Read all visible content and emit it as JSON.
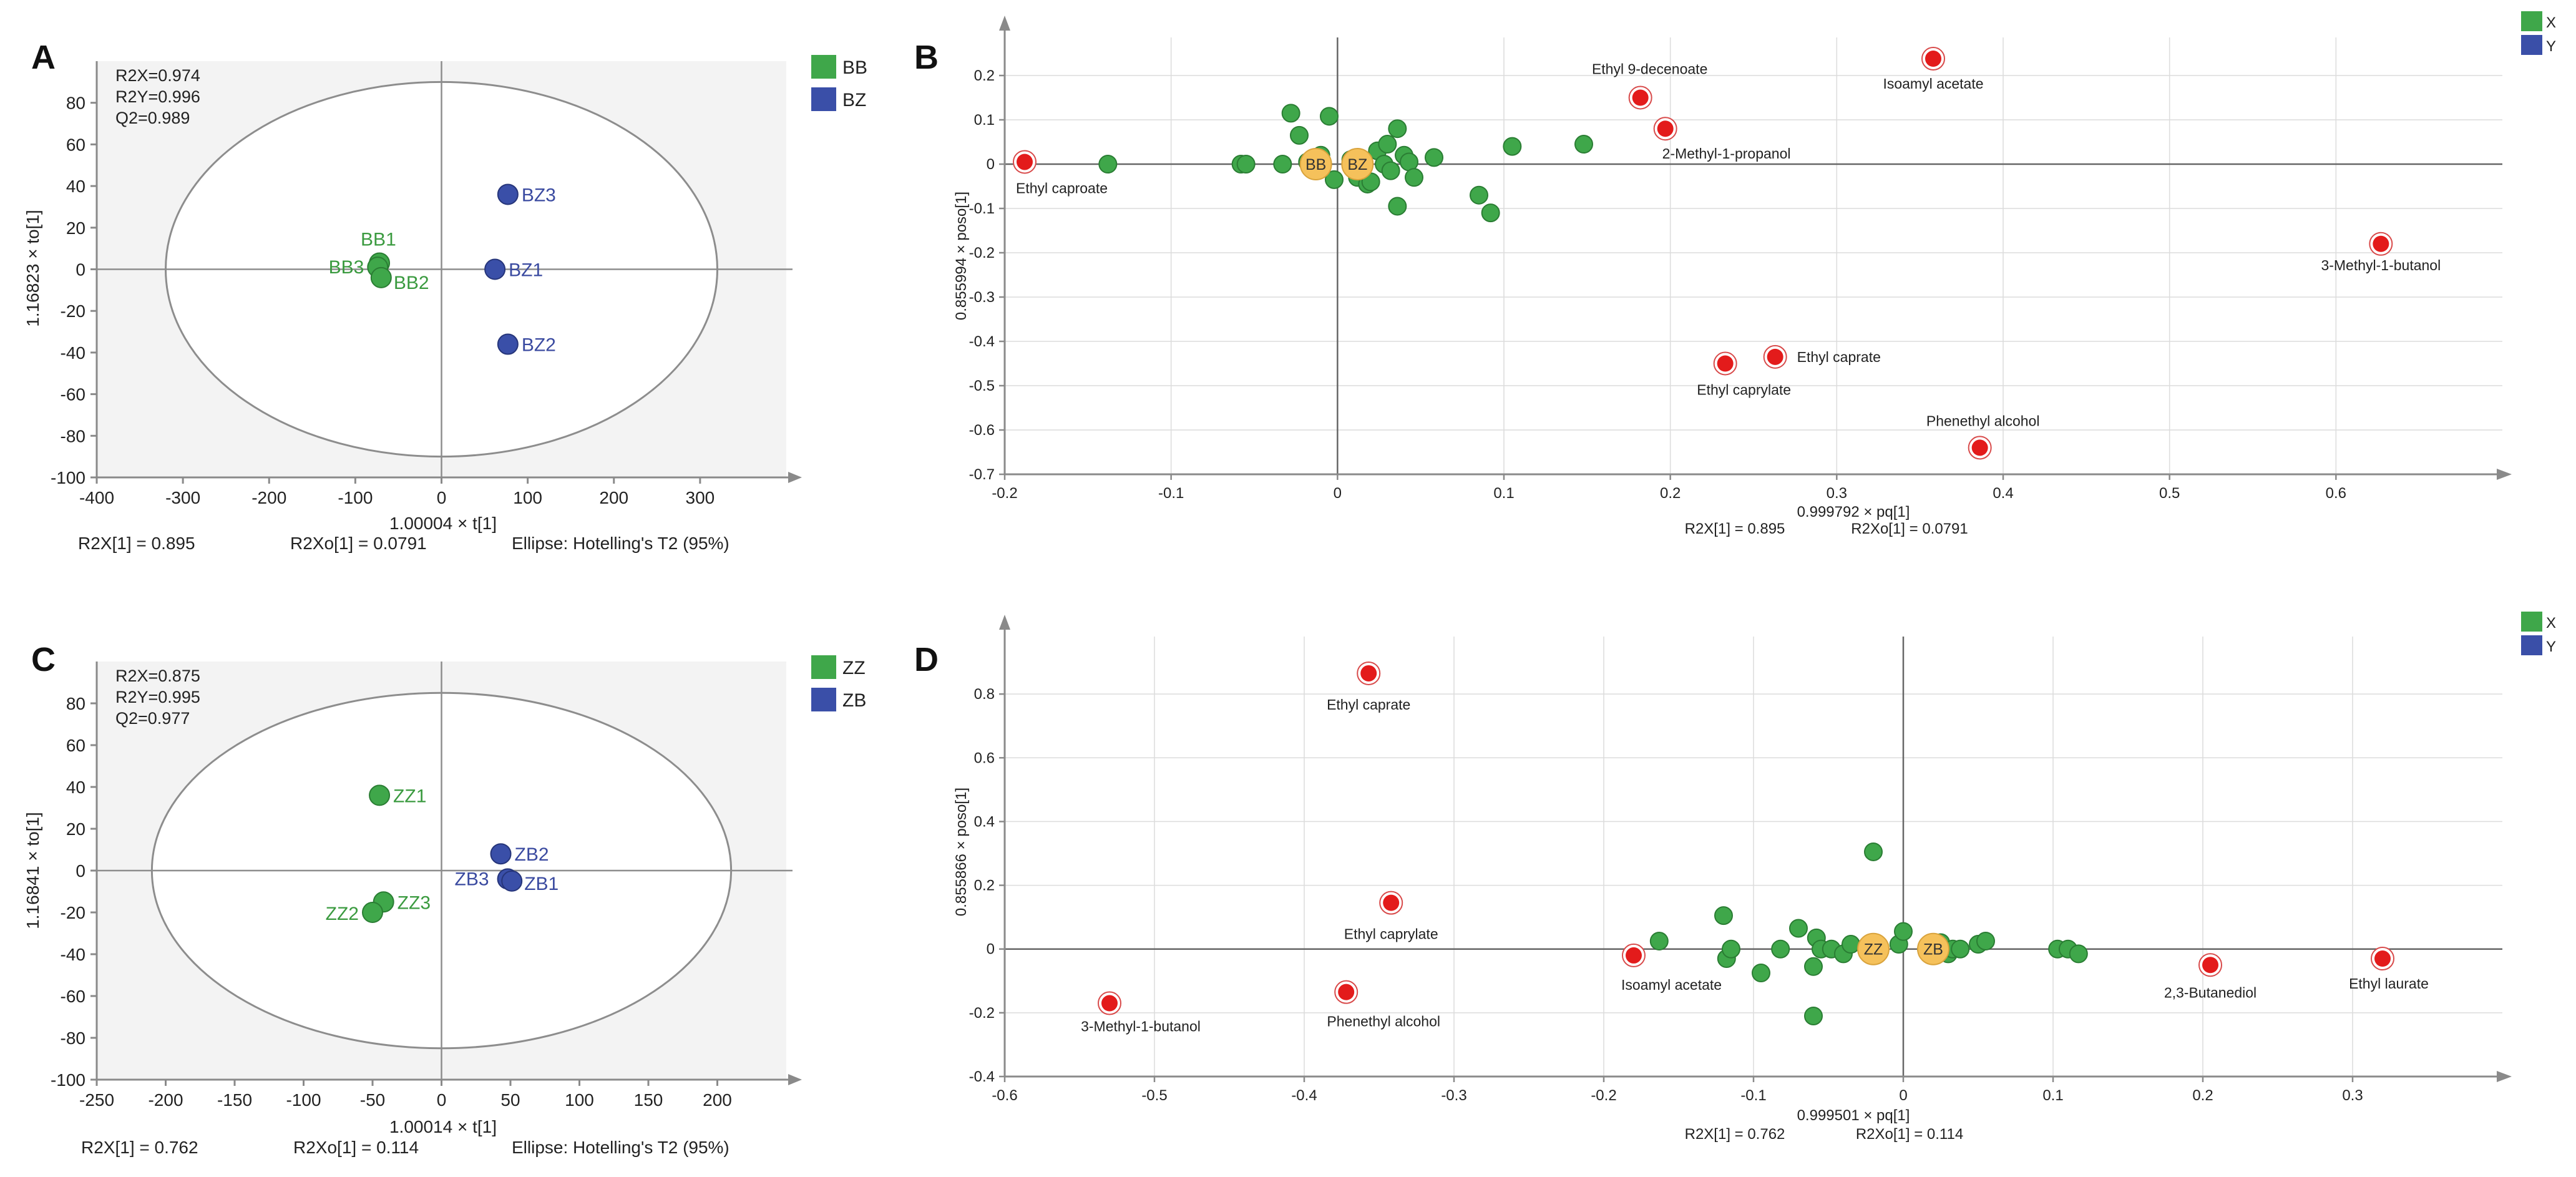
{
  "colors": {
    "green": "#3fa74a",
    "green_text": "#3a9a3f",
    "blue": "#3a4fa8",
    "blue_text": "#3a4aa0",
    "red": "#e31b1b",
    "orange": "#f5c15b",
    "axis": "#8a8a8a",
    "grid": "#dcdcdc",
    "plot_bg": "#f3f3f3"
  },
  "chart_data": [
    {
      "panel": "A",
      "type": "scatter",
      "stats": [
        "R2X=0.974",
        "R2Y=0.996",
        "Q2=0.989"
      ],
      "xlabel": "1.00004 × t[1]",
      "ylabel": "1.16823 × to[1]",
      "xlim": [
        -400,
        400
      ],
      "ylim": [
        -100,
        100
      ],
      "xticks": [
        -400,
        -300,
        -200,
        -100,
        0,
        100,
        200,
        300
      ],
      "yticks": [
        -100,
        -80,
        -60,
        -40,
        -20,
        0,
        20,
        40,
        60,
        80
      ],
      "ellipse": {
        "rx": 320,
        "ry": 90
      },
      "legend": [
        {
          "name": "BB",
          "color": "green"
        },
        {
          "name": "BZ",
          "color": "blue"
        }
      ],
      "points": [
        {
          "name": "BB1",
          "x": -72,
          "y": 3,
          "group": "BB"
        },
        {
          "name": "BB3",
          "x": -74,
          "y": 1,
          "group": "BB"
        },
        {
          "name": "BB2",
          "x": -70,
          "y": -4,
          "group": "BB"
        },
        {
          "name": "BZ3",
          "x": 77,
          "y": 36,
          "group": "BZ"
        },
        {
          "name": "BZ1",
          "x": 62,
          "y": 0,
          "group": "BZ"
        },
        {
          "name": "BZ2",
          "x": 77,
          "y": -36,
          "group": "BZ"
        }
      ],
      "footer": [
        "R2X[1] = 0.895",
        "R2Xo[1] = 0.0791",
        "Ellipse: Hotelling's T2 (95%)"
      ]
    },
    {
      "panel": "B",
      "type": "scatter",
      "xlabel": "0.999792 × pq[1]",
      "ylabel": "0.855994 × poso[1]",
      "xlim": [
        -0.2,
        0.7
      ],
      "ylim": [
        -0.7,
        0.3
      ],
      "xticks": [
        -0.2,
        -0.1,
        0,
        0.1,
        0.2,
        0.3,
        0.4,
        0.5,
        0.6
      ],
      "yticks": [
        -0.7,
        -0.6,
        -0.5,
        -0.4,
        -0.3,
        -0.2,
        -0.1,
        0,
        0.1,
        0.2
      ],
      "legend": [
        {
          "name": "X",
          "color": "green"
        },
        {
          "name": "Y",
          "color": "blue"
        }
      ],
      "footer": [
        "R2X[1] = 0.895",
        "R2Xo[1] = 0.0791"
      ],
      "x_variables": [
        [
          -0.138,
          0.0
        ],
        [
          -0.058,
          0.0
        ],
        [
          -0.055,
          0.0
        ],
        [
          -0.033,
          0.0
        ],
        [
          -0.028,
          0.115
        ],
        [
          -0.023,
          0.065
        ],
        [
          -0.018,
          0.005
        ],
        [
          -0.01,
          0.02
        ],
        [
          -0.005,
          0.108
        ],
        [
          -0.002,
          -0.035
        ],
        [
          0.008,
          0.01
        ],
        [
          0.012,
          -0.03
        ],
        [
          0.018,
          -0.045
        ],
        [
          0.02,
          -0.04
        ],
        [
          0.024,
          0.03
        ],
        [
          0.028,
          0.0
        ],
        [
          0.03,
          0.045
        ],
        [
          0.032,
          -0.015
        ],
        [
          0.036,
          0.08
        ],
        [
          0.04,
          0.02
        ],
        [
          0.043,
          0.005
        ],
        [
          0.046,
          -0.03
        ],
        [
          0.058,
          0.015
        ],
        [
          0.036,
          -0.095
        ],
        [
          0.085,
          -0.07
        ],
        [
          0.092,
          -0.11
        ],
        [
          0.105,
          0.04
        ],
        [
          0.148,
          0.045
        ]
      ],
      "y_variables": [
        {
          "name": "BB",
          "x": -0.013,
          "y": 0.0
        },
        {
          "name": "BZ",
          "x": 0.012,
          "y": 0.0
        }
      ],
      "highlighted": [
        {
          "name": "Ethyl caproate",
          "x": -0.188,
          "y": 0.005
        },
        {
          "name": "Ethyl 9-decenoate",
          "x": 0.182,
          "y": 0.15
        },
        {
          "name": "Isoamyl acetate",
          "x": 0.358,
          "y": 0.238
        },
        {
          "name": "2-Methyl-1-propanol",
          "x": 0.197,
          "y": 0.08
        },
        {
          "name": "3-Methyl-1-butanol",
          "x": 0.627,
          "y": -0.18
        },
        {
          "name": "Ethyl caprate",
          "x": 0.263,
          "y": -0.435
        },
        {
          "name": "Ethyl caprylate",
          "x": 0.233,
          "y": -0.45
        },
        {
          "name": "Phenethyl alcohol",
          "x": 0.386,
          "y": -0.64
        }
      ]
    },
    {
      "panel": "C",
      "type": "scatter",
      "stats": [
        "R2X=0.875",
        "R2Y=0.995",
        "Q2=0.977"
      ],
      "xlabel": "1.00014 × t[1]",
      "ylabel": "1.16841 × to[1]",
      "xlim": [
        -250,
        250
      ],
      "ylim": [
        -100,
        100
      ],
      "xticks": [
        -250,
        -200,
        -150,
        -100,
        -50,
        0,
        50,
        100,
        150,
        200
      ],
      "yticks": [
        -100,
        -80,
        -60,
        -40,
        -20,
        0,
        20,
        40,
        60,
        80
      ],
      "ellipse": {
        "rx": 210,
        "ry": 85
      },
      "legend": [
        {
          "name": "ZZ",
          "color": "green"
        },
        {
          "name": "ZB",
          "color": "blue"
        }
      ],
      "points": [
        {
          "name": "ZZ1",
          "x": -45,
          "y": 36,
          "group": "ZZ"
        },
        {
          "name": "ZZ3",
          "x": -42,
          "y": -15,
          "group": "ZZ"
        },
        {
          "name": "ZZ2",
          "x": -50,
          "y": -20,
          "group": "ZZ"
        },
        {
          "name": "ZB2",
          "x": 43,
          "y": 8,
          "group": "ZB"
        },
        {
          "name": "ZB3",
          "x": 48,
          "y": -4,
          "group": "ZB"
        },
        {
          "name": "ZB1",
          "x": 51,
          "y": -5,
          "group": "ZB"
        }
      ],
      "footer": [
        "R2X[1] = 0.762",
        "R2Xo[1] = 0.114",
        "Ellipse: Hotelling's T2 (95%)"
      ]
    },
    {
      "panel": "D",
      "type": "scatter",
      "xlabel": "0.999501 × pq[1]",
      "ylabel": "0.855866 × poso[1]",
      "xlim": [
        -0.6,
        0.4
      ],
      "ylim": [
        -0.4,
        1.0
      ],
      "xticks": [
        -0.6,
        -0.5,
        -0.4,
        -0.3,
        -0.2,
        -0.1,
        0,
        0.1,
        0.2,
        0.3
      ],
      "yticks": [
        -0.4,
        -0.2,
        0,
        0.2,
        0.4,
        0.6,
        0.8
      ],
      "legend": [
        {
          "name": "X",
          "color": "green"
        },
        {
          "name": "Y",
          "color": "blue"
        }
      ],
      "footer": [
        "R2X[1] = 0.762",
        "R2Xo[1] = 0.114"
      ],
      "x_variables": [
        [
          -0.163,
          0.025
        ],
        [
          -0.12,
          0.105
        ],
        [
          -0.118,
          -0.03
        ],
        [
          -0.115,
          0.0
        ],
        [
          -0.095,
          -0.075
        ],
        [
          -0.082,
          0.0
        ],
        [
          -0.07,
          0.065
        ],
        [
          -0.06,
          -0.055
        ],
        [
          -0.058,
          0.035
        ],
        [
          -0.055,
          0.0
        ],
        [
          -0.048,
          0.0
        ],
        [
          -0.04,
          -0.015
        ],
        [
          -0.035,
          0.015
        ],
        [
          -0.02,
          0.305
        ],
        [
          -0.06,
          -0.21
        ],
        [
          -0.003,
          0.015
        ],
        [
          0.0,
          0.055
        ],
        [
          0.025,
          0.02
        ],
        [
          0.03,
          -0.015
        ],
        [
          0.033,
          0.0
        ],
        [
          0.038,
          0.0
        ],
        [
          0.05,
          0.015
        ],
        [
          0.055,
          0.025
        ],
        [
          0.103,
          0.0
        ],
        [
          0.11,
          0.0
        ],
        [
          0.117,
          -0.015
        ]
      ],
      "y_variables": [
        {
          "name": "ZZ",
          "x": -0.02,
          "y": 0.0
        },
        {
          "name": "ZB",
          "x": 0.02,
          "y": 0.0
        }
      ],
      "highlighted": [
        {
          "name": "Ethyl caprate",
          "x": -0.357,
          "y": 0.865
        },
        {
          "name": "Ethyl caprylate",
          "x": -0.342,
          "y": 0.145
        },
        {
          "name": "Isoamyl acetate",
          "x": -0.18,
          "y": -0.02
        },
        {
          "name": "Phenethyl alcohol",
          "x": -0.372,
          "y": -0.135
        },
        {
          "name": "3-Methyl-1-butanol",
          "x": -0.53,
          "y": -0.17
        },
        {
          "name": "2,3-Butanediol",
          "x": 0.205,
          "y": -0.05
        },
        {
          "name": "Ethyl laurate",
          "x": 0.32,
          "y": -0.03
        }
      ]
    }
  ]
}
